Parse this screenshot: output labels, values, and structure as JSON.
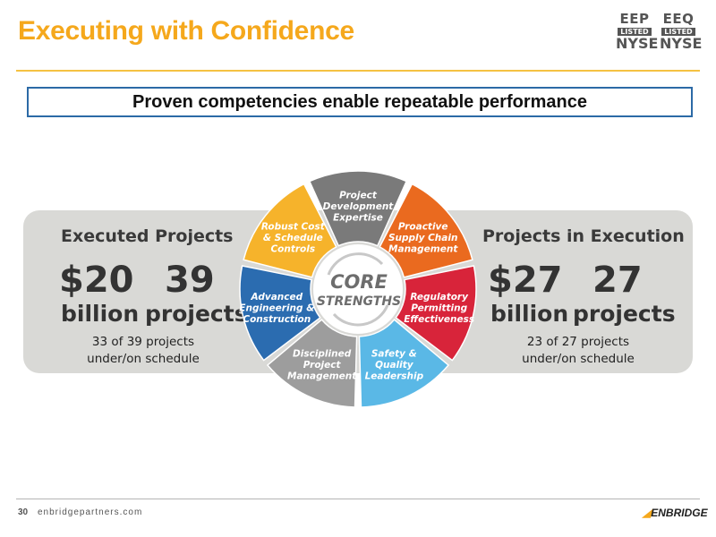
{
  "header": {
    "title": "Executing with Confidence",
    "logos": [
      {
        "ticker": "EEP",
        "listed": "LISTED",
        "exchange": "NYSE"
      },
      {
        "ticker": "EEQ",
        "listed": "LISTED",
        "exchange": "NYSE"
      }
    ]
  },
  "subtitle": "Proven competencies enable repeatable performance",
  "executed": {
    "heading": "Executed Projects",
    "amount": "$20",
    "amount_unit": "billion",
    "count": "39",
    "count_unit": "projects",
    "note_line1": "33 of 39 projects",
    "note_line2": "under/on schedule"
  },
  "in_execution": {
    "heading": "Projects in Execution",
    "amount": "$27",
    "amount_unit": "billion",
    "count": "27",
    "count_unit": "projects",
    "note_line1": "23 of 27 projects",
    "note_line2": "under/on schedule"
  },
  "wheel": {
    "center_line1": "CORE",
    "center_line2": "STRENGTHS",
    "segments": [
      {
        "lines": [
          "Project",
          "Development",
          "Expertise"
        ],
        "color": "#7a7a7a"
      },
      {
        "lines": [
          "Proactive",
          "Supply Chain",
          "Management"
        ],
        "color": "#ea6a1f"
      },
      {
        "lines": [
          "Regulatory",
          "Permitting",
          "Effectiveness"
        ],
        "color": "#d8243a"
      },
      {
        "lines": [
          "Safety &",
          "Quality",
          "Leadership"
        ],
        "color": "#5ab8e6"
      },
      {
        "lines": [
          "Disciplined",
          "Project",
          "Management"
        ],
        "color": "#9d9d9d"
      },
      {
        "lines": [
          "Advanced",
          "Engineering &",
          "Construction"
        ],
        "color": "#2b6cb0"
      },
      {
        "lines": [
          "Robust Cost",
          "& Schedule",
          "Controls"
        ],
        "color": "#f6b32b"
      }
    ]
  },
  "footer": {
    "page": "30",
    "site": "enbridgepartners.com",
    "brand": "ENBRIDGE"
  }
}
